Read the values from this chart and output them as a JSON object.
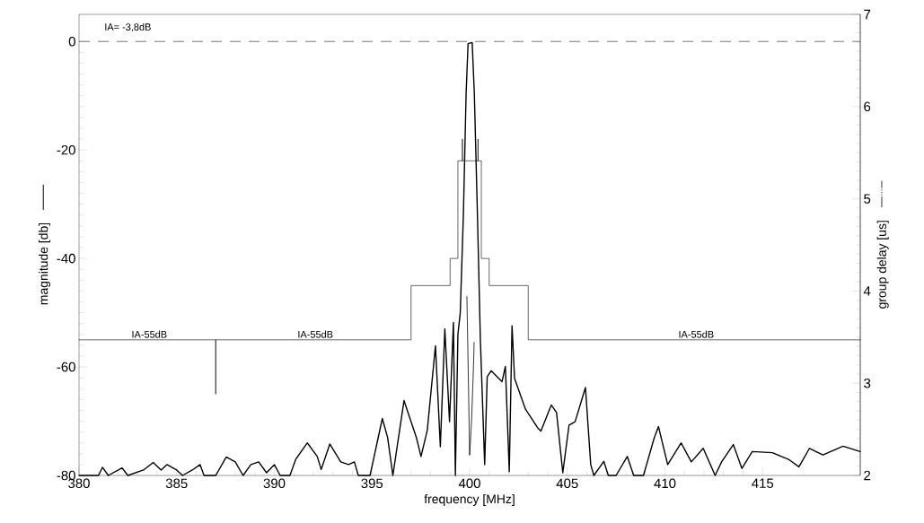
{
  "chart_data": {
    "type": "line",
    "xlabel": "frequency  [MHz]",
    "ylabel": "magnitude  [db]",
    "y2label": "group  delay  [us]",
    "xlim": [
      380,
      420
    ],
    "xticks": [
      380,
      385,
      390,
      395,
      400,
      405,
      410,
      415
    ],
    "ylim": [
      -80,
      5
    ],
    "yticks": [
      -80,
      -60,
      -40,
      -20,
      0
    ],
    "y2lim": [
      2,
      7
    ],
    "y2ticks": [
      2,
      3,
      4,
      5,
      6,
      7
    ],
    "series": [
      {
        "color": "#000000",
        "line_style": "solid",
        "x": [
          380,
          381,
          381.2,
          381.5,
          382.2,
          382.5,
          383.3,
          383.8,
          384.2,
          384.5,
          385,
          385.3,
          385.8,
          386.2,
          386.4,
          387,
          387.54,
          388,
          388.4,
          388.8,
          389.2,
          389.6,
          390,
          390.3,
          390.8,
          391.1,
          391.69,
          392.2,
          392.4,
          392.84,
          393.4,
          393.8,
          394.1,
          394.3,
          394.9,
          395.2,
          395.53,
          395.8,
          396.07,
          396.64,
          397.28,
          397.51,
          397.83,
          398.25,
          398.5,
          398.73,
          398.97,
          399.17,
          399.27,
          399.4,
          399.52,
          399.68,
          399.82,
          399.92,
          400.13,
          400.24,
          400.4,
          400.55,
          400.77,
          400.9,
          401.1,
          401.66,
          401.83,
          402.03,
          402.17,
          402.3,
          402.86,
          403.5,
          403.65,
          404.18,
          404.45,
          404.77,
          405.09,
          405.4,
          405.93,
          406.2,
          406.36,
          406.87,
          407.1,
          407.5,
          408.07,
          408.4,
          408.9,
          409.45,
          409.67,
          410.14,
          410.83,
          411.35,
          411.96,
          412.57,
          412.9,
          413.5,
          413.94,
          414.47,
          415.5,
          416.36,
          416.86,
          417.4,
          418.09,
          419.12,
          420
        ],
        "values": [
          -80,
          -80,
          -78.5,
          -80,
          -78.6,
          -80,
          -79,
          -77.6,
          -79,
          -78,
          -79,
          -80,
          -79,
          -78,
          -80,
          -80,
          -76.6,
          -77.5,
          -80,
          -78,
          -77.5,
          -79.5,
          -78,
          -80,
          -80,
          -77,
          -74,
          -76.5,
          -78.9,
          -74.2,
          -77.5,
          -78,
          -77.5,
          -80,
          -80,
          -75,
          -69.5,
          -73,
          -80,
          -66.2,
          -73.1,
          -76.5,
          -71.7,
          -56.1,
          -74.7,
          -53,
          -70.1,
          -51.8,
          -80,
          -54,
          -50,
          -32,
          -9.5,
          -0.4,
          -0.2,
          -9.5,
          -32,
          -55,
          -78,
          -61.8,
          -60.7,
          -62.7,
          -59.9,
          -79.3,
          -52.4,
          -62.1,
          -67.8,
          -71.3,
          -71.8,
          -67,
          -68.4,
          -79.5,
          -70.7,
          -70.1,
          -63.8,
          -78,
          -80,
          -77.4,
          -80,
          -80,
          -76.5,
          -80,
          -80,
          -73.1,
          -71,
          -78,
          -74,
          -77.5,
          -75,
          -80,
          -77.5,
          -74.3,
          -78.7,
          -75.6,
          -75.8,
          -77.1,
          -78.4,
          -75,
          -76.2,
          -74.6,
          -75.6
        ]
      },
      {
        "color": "#000000",
        "line_style": "solid",
        "x": [
          380,
          387,
          387,
          387,
          397,
          397,
          399,
          399,
          399.4,
          399.4,
          399.63,
          399.63,
          399.63,
          400.43,
          400.43,
          400.43,
          400.6,
          400.6,
          401,
          401,
          403,
          403,
          420
        ],
        "values": [
          -55,
          -55,
          -65,
          -55,
          -55,
          -45,
          -45,
          -40,
          -40,
          -22,
          -22,
          -18,
          -22,
          -22,
          -18,
          -22,
          -22,
          -40,
          -40,
          -45,
          -45,
          -55,
          -55
        ]
      },
      {
        "color": "#000000",
        "axis": "y2",
        "line_style": "dashdot",
        "x": [
          399.86,
          399.93,
          400.0,
          400.1,
          400.2,
          400.23
        ],
        "values": [
          3.94,
          3.1,
          2.22,
          2.6,
          3.2,
          3.45
        ]
      }
    ],
    "ref_lines": [
      {
        "axis": "y",
        "value": 0,
        "color": "#555555",
        "line_style": "dashed"
      }
    ],
    "annotations": [
      "IA=  -3,8dB",
      {
        "text": "IA-55dB",
        "x": 383.6,
        "y": -55
      },
      {
        "text": "IA-55dB",
        "x": 392.1,
        "y": -55
      },
      {
        "text": "IA-55dB",
        "x": 411.6,
        "y": -55
      }
    ]
  }
}
